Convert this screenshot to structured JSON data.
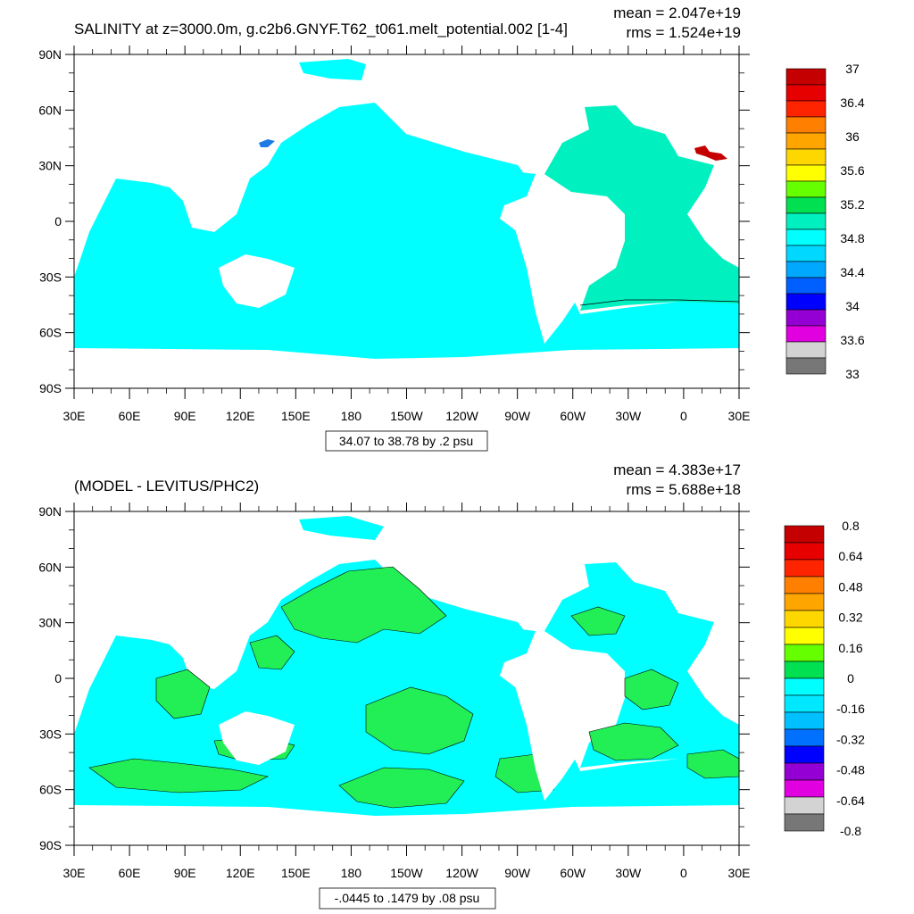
{
  "panels": [
    {
      "title": "SALINITY at z=3000.0m, g.c2b6.GNYF.T62_t061.melt_potential.002 [1-4]",
      "mean_label": "mean = 2.047e+19",
      "rms_label": "rms = 1.524e+19",
      "range_label": "34.07 to 38.78 by .2 psu",
      "colorbar_labels": [
        "37",
        "36.4",
        "36",
        "35.6",
        "35.2",
        "34.8",
        "34.4",
        "34",
        "33.6",
        "33"
      ],
      "colorbar_colors": [
        "#c40000",
        "#e60000",
        "#ff2400",
        "#ff7f00",
        "#ffa500",
        "#ffd700",
        "#ffff00",
        "#66ff00",
        "#00e050",
        "#00f0c0",
        "#00ffff",
        "#00d8ff",
        "#00a8ff",
        "#0060ff",
        "#0000ff",
        "#9400d3",
        "#e000e0",
        "#d3d3d3",
        "#777777"
      ],
      "ocean_color": "#00ffff",
      "atlantic_color": "#00f0c0"
    },
    {
      "title": "(MODEL - LEVITUS/PHC2)",
      "mean_label": "mean = 4.383e+17",
      "rms_label": "rms = 5.688e+18",
      "range_label": "-.0445 to .1479 by .08 psu",
      "colorbar_labels": [
        "0.8",
        "0.64",
        "0.48",
        "0.32",
        "0.16",
        "0",
        "-0.16",
        "-0.32",
        "-0.48",
        "-0.64",
        "-0.8"
      ],
      "colorbar_colors": [
        "#c40000",
        "#e60000",
        "#ff2400",
        "#ff7f00",
        "#ffa500",
        "#ffd700",
        "#ffff00",
        "#66ff00",
        "#00e050",
        "#00ffff",
        "#00e8ff",
        "#00c0ff",
        "#0070ff",
        "#0000ff",
        "#9400d3",
        "#e000e0",
        "#d3d3d3",
        "#777777"
      ],
      "ocean_color": "#00ffff",
      "positive_color": "#22ee55"
    }
  ],
  "axes": {
    "x_ticks": [
      "30E",
      "60E",
      "90E",
      "120E",
      "150E",
      "180",
      "150W",
      "120W",
      "90W",
      "60W",
      "30W",
      "0",
      "30E"
    ],
    "y_ticks": [
      "90N",
      "60N",
      "30N",
      "0",
      "30S",
      "60S",
      "90S"
    ]
  },
  "chart_data": [
    {
      "type": "heatmap",
      "title": "SALINITY at z=3000.0m, g.c2b6.GNYF.T62_t061.melt_potential.002 [1-4]",
      "xlabel": "",
      "ylabel": "",
      "x_ticks": [
        "30E",
        "60E",
        "90E",
        "120E",
        "150E",
        "180",
        "150W",
        "120W",
        "90W",
        "60W",
        "30W",
        "0",
        "30E"
      ],
      "y_ticks": [
        "90N",
        "60N",
        "30N",
        "0",
        "30S",
        "60S",
        "90S"
      ],
      "lon_range": [
        30,
        390
      ],
      "lat_range": [
        -90,
        90
      ],
      "contour_range": "34.07 to 38.78 by .2 psu",
      "mean": 2.047e+19,
      "rms": 1.524e+19,
      "colorbar_levels": [
        37,
        36.4,
        36,
        35.6,
        35.2,
        34.8,
        34.4,
        34,
        33.6,
        33
      ]
    },
    {
      "type": "heatmap",
      "title": "(MODEL - LEVITUS/PHC2)",
      "xlabel": "",
      "ylabel": "",
      "x_ticks": [
        "30E",
        "60E",
        "90E",
        "120E",
        "150E",
        "180",
        "150W",
        "120W",
        "90W",
        "60W",
        "30W",
        "0",
        "30E"
      ],
      "y_ticks": [
        "90N",
        "60N",
        "30N",
        "0",
        "30S",
        "60S",
        "90S"
      ],
      "lon_range": [
        30,
        390
      ],
      "lat_range": [
        -90,
        90
      ],
      "contour_range": "-.0445 to .1479 by .08 psu",
      "mean": 4.383e+17,
      "rms": 5.688e+18,
      "colorbar_levels": [
        0.8,
        0.64,
        0.48,
        0.32,
        0.16,
        0,
        -0.16,
        -0.32,
        -0.48,
        -0.64,
        -0.8
      ]
    }
  ]
}
